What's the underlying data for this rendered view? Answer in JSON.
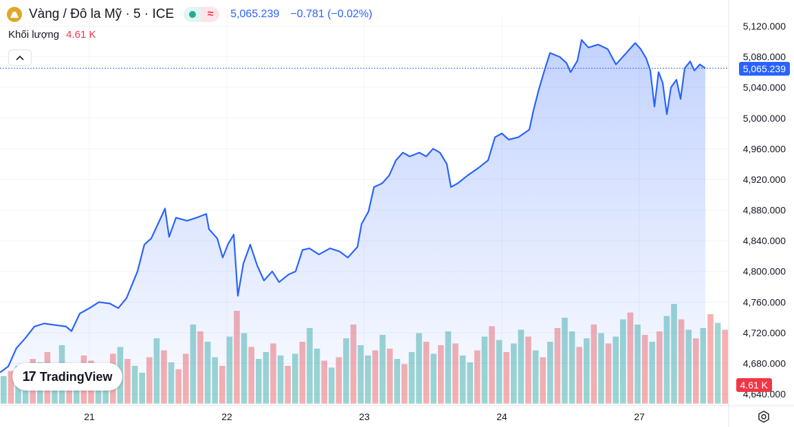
{
  "header": {
    "title": "Vàng / Đô la Mỹ · 5 · ICE",
    "last_price": "5,065.239",
    "change": "−0.781 (−0.02%)",
    "pill_wave_symbol": "≈"
  },
  "volume": {
    "label": "Khối lượng",
    "value": "4.61 K"
  },
  "logo": {
    "mark": "17",
    "text": "TradingView"
  },
  "price_tag": "5,065.239",
  "volume_tag": "4.61 K",
  "colors": {
    "line": "#2962ff",
    "up_volume": "#26a69a",
    "down_volume": "#ef5350",
    "accent": "#2962ff",
    "gold": "#e0a726"
  },
  "icons": [
    "gold-coin-icon",
    "market-open-dot-icon",
    "delayed-data-icon",
    "chevron-up-icon",
    "settings-icon"
  ],
  "chart_data": {
    "type": "area",
    "y_ticks": [
      "5,120.000",
      "5,080.000",
      "5,040.000",
      "5,000.000",
      "4,960.000",
      "4,920.000",
      "4,880.000",
      "4,840.000",
      "4,800.000",
      "4,760.000",
      "4,720.000",
      "4,680.000",
      "4,640.000"
    ],
    "x_ticks": [
      "21",
      "22",
      "23",
      "24",
      "27"
    ],
    "ylim": [
      4640,
      5120
    ],
    "x_range": [
      0,
      5.3
    ],
    "x_tick_positions": [
      0.65,
      1.65,
      2.65,
      3.65,
      4.65
    ],
    "series": [
      {
        "points": [
          [
            0.0,
            4668
          ],
          [
            0.06,
            4676
          ],
          [
            0.12,
            4700
          ],
          [
            0.18,
            4712
          ],
          [
            0.25,
            4728
          ],
          [
            0.32,
            4732
          ],
          [
            0.4,
            4730
          ],
          [
            0.48,
            4728
          ],
          [
            0.52,
            4722
          ],
          [
            0.58,
            4745
          ],
          [
            0.65,
            4752
          ],
          [
            0.72,
            4760
          ],
          [
            0.8,
            4758
          ],
          [
            0.86,
            4752
          ],
          [
            0.92,
            4765
          ],
          [
            1.0,
            4800
          ],
          [
            1.05,
            4835
          ],
          [
            1.1,
            4843
          ],
          [
            1.17,
            4870
          ],
          [
            1.2,
            4882
          ],
          [
            1.23,
            4845
          ],
          [
            1.28,
            4870
          ],
          [
            1.36,
            4866
          ],
          [
            1.43,
            4870
          ],
          [
            1.5,
            4875
          ],
          [
            1.52,
            4855
          ],
          [
            1.58,
            4843
          ],
          [
            1.62,
            4818
          ],
          [
            1.66,
            4836
          ],
          [
            1.7,
            4848
          ],
          [
            1.73,
            4768
          ],
          [
            1.77,
            4810
          ],
          [
            1.82,
            4835
          ],
          [
            1.87,
            4808
          ],
          [
            1.92,
            4788
          ],
          [
            1.98,
            4800
          ],
          [
            2.03,
            4786
          ],
          [
            2.1,
            4796
          ],
          [
            2.15,
            4800
          ],
          [
            2.2,
            4828
          ],
          [
            2.25,
            4830
          ],
          [
            2.32,
            4822
          ],
          [
            2.4,
            4830
          ],
          [
            2.47,
            4826
          ],
          [
            2.53,
            4818
          ],
          [
            2.6,
            4832
          ],
          [
            2.63,
            4862
          ],
          [
            2.68,
            4878
          ],
          [
            2.72,
            4910
          ],
          [
            2.78,
            4915
          ],
          [
            2.83,
            4925
          ],
          [
            2.88,
            4945
          ],
          [
            2.93,
            4955
          ],
          [
            2.98,
            4950
          ],
          [
            3.05,
            4955
          ],
          [
            3.1,
            4950
          ],
          [
            3.15,
            4960
          ],
          [
            3.2,
            4955
          ],
          [
            3.25,
            4940
          ],
          [
            3.28,
            4910
          ],
          [
            3.33,
            4915
          ],
          [
            3.4,
            4925
          ],
          [
            3.48,
            4935
          ],
          [
            3.55,
            4945
          ],
          [
            3.6,
            4975
          ],
          [
            3.65,
            4980
          ],
          [
            3.7,
            4972
          ],
          [
            3.77,
            4975
          ],
          [
            3.85,
            4985
          ],
          [
            3.88,
            5010
          ],
          [
            3.92,
            5038
          ],
          [
            3.96,
            5062
          ],
          [
            4.0,
            5085
          ],
          [
            4.07,
            5080
          ],
          [
            4.12,
            5072
          ],
          [
            4.15,
            5060
          ],
          [
            4.2,
            5075
          ],
          [
            4.23,
            5102
          ],
          [
            4.28,
            5092
          ],
          [
            4.35,
            5096
          ],
          [
            4.42,
            5090
          ],
          [
            4.48,
            5070
          ],
          [
            4.52,
            5078
          ],
          [
            4.58,
            5090
          ],
          [
            4.62,
            5098
          ],
          [
            4.66,
            5090
          ],
          [
            4.7,
            5078
          ],
          [
            4.73,
            5062
          ],
          [
            4.76,
            5015
          ],
          [
            4.79,
            5060
          ],
          [
            4.82,
            5046
          ],
          [
            4.85,
            5005
          ],
          [
            4.88,
            5040
          ],
          [
            4.92,
            5050
          ],
          [
            4.95,
            5025
          ],
          [
            4.98,
            5065
          ],
          [
            5.02,
            5074
          ],
          [
            5.05,
            5062
          ],
          [
            5.09,
            5070
          ],
          [
            5.13,
            5065
          ]
        ]
      }
    ],
    "volume_values": [
      1.6,
      1.9,
      2.2,
      1.8,
      2.6,
      2.4,
      3.0,
      2.2,
      3.4,
      2.0,
      1.9,
      2.8,
      2.5,
      2.1,
      1.7,
      2.9,
      3.3,
      2.6,
      2.2,
      1.8,
      2.7,
      3.8,
      3.1,
      2.4,
      2.0,
      2.9,
      4.6,
      4.2,
      3.6,
      2.7,
      2.2,
      3.9,
      5.4,
      4.1,
      3.3,
      2.6,
      3.0,
      3.5,
      2.8,
      2.2,
      2.9,
      3.6,
      4.4,
      3.2,
      2.5,
      2.1,
      2.7,
      3.8,
      4.6,
      3.4,
      2.8,
      3.1,
      4.0,
      3.2,
      2.6,
      2.3,
      3.0,
      4.1,
      3.6,
      2.9,
      3.4,
      4.2,
      3.5,
      2.8,
      2.4,
      3.1,
      3.9,
      4.5,
      3.7,
      3.0,
      3.5,
      4.3,
      3.9,
      3.1,
      2.7,
      3.6,
      4.4,
      5.0,
      4.2,
      3.3,
      3.8,
      4.6,
      4.1,
      3.5,
      3.9,
      4.9,
      5.3,
      4.6,
      4.0,
      3.6,
      4.2,
      5.1,
      5.8,
      4.9,
      4.3,
      3.8,
      4.4,
      5.2,
      4.7,
      4.3
    ],
    "volume_directions": [
      1,
      0,
      1,
      1,
      0,
      1,
      0,
      1,
      1,
      0,
      1,
      0,
      0,
      1,
      1,
      0,
      1,
      0,
      1,
      1,
      0,
      1,
      0,
      1,
      0,
      0,
      1,
      0,
      1,
      1,
      0,
      1,
      0,
      1,
      0,
      1,
      1,
      0,
      1,
      0,
      1,
      0,
      1,
      1,
      0,
      1,
      0,
      1,
      0,
      1,
      1,
      0,
      1,
      0,
      1,
      0,
      1,
      1,
      0,
      1,
      0,
      1,
      0,
      1,
      1,
      0,
      1,
      0,
      1,
      0,
      1,
      1,
      0,
      1,
      0,
      1,
      0,
      1,
      1,
      0,
      1,
      0,
      1,
      0,
      1,
      1,
      0,
      1,
      0,
      1,
      0,
      1,
      1,
      0,
      1,
      0,
      1,
      0,
      1,
      0
    ],
    "volume_max": 6
  }
}
